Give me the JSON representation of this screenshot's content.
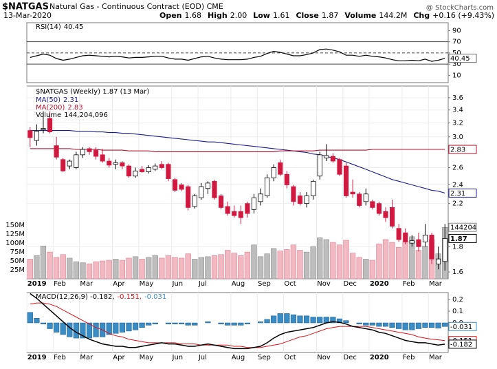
{
  "header": {
    "symbol": "$NATGAS",
    "description": "Natural Gas - Continuous Contract (EOD) CME",
    "date": "13-Mar-2020",
    "watermark": "@ StockCharts.com",
    "quote": [
      {
        "label": "Open",
        "value": "1.68"
      },
      {
        "label": "High",
        "value": "2.00"
      },
      {
        "label": "Low",
        "value": "1.61"
      },
      {
        "label": "Close",
        "value": "1.87"
      },
      {
        "label": "Volume",
        "value": "144.2M"
      },
      {
        "label": "Chg",
        "value": "+0.16 (+9.43%)"
      }
    ]
  },
  "chart_data": [
    {
      "type": "line",
      "ylim": [
        -3,
        104
      ],
      "yticks": [
        90,
        70,
        50,
        30,
        10
      ],
      "levels": [
        70,
        50,
        30
      ],
      "series": [
        {
          "name": "RSI(14)",
          "color": "#000000",
          "values": [
            42,
            45,
            48,
            46,
            40,
            37,
            39,
            42,
            45,
            46,
            45,
            44,
            43,
            44,
            43,
            41,
            42,
            42,
            43,
            44,
            44,
            41,
            39,
            39,
            37,
            40,
            43,
            44,
            41,
            39,
            38,
            38,
            38,
            39,
            42,
            44,
            49,
            53,
            51,
            48,
            45,
            45,
            47,
            50,
            56,
            57,
            55,
            52,
            46,
            46,
            44,
            46,
            44,
            43,
            41,
            38,
            36,
            36,
            37,
            36,
            39,
            35,
            37,
            40.45
          ]
        }
      ]
    },
    {
      "type": "candlestick",
      "title": "$NATGAS (Weekly) 1.87 (13 Mar)",
      "log_scale": true,
      "grid": true,
      "ylim": [
        1.55,
        3.8
      ],
      "yticks": [
        3.6,
        3.4,
        3.2,
        {
          "value": 3,
          "label": "3.0"
        },
        2.6,
        2.4,
        2.2,
        1.8,
        1.6
      ],
      "categories": [
        "2019",
        null,
        null,
        null,
        "Feb",
        null,
        null,
        null,
        "Mar",
        null,
        null,
        null,
        null,
        "Apr",
        null,
        null,
        null,
        "May",
        null,
        null,
        null,
        null,
        "Jun",
        null,
        null,
        null,
        "Jul",
        null,
        null,
        null,
        null,
        "Aug",
        null,
        null,
        null,
        "Sep",
        null,
        null,
        null,
        "Oct",
        null,
        null,
        null,
        null,
        "Nov",
        null,
        null,
        null,
        "Dec",
        null,
        null,
        null,
        "2020",
        null,
        null,
        null,
        null,
        "Feb",
        null,
        null,
        null,
        "Mar",
        null,
        null
      ],
      "open": [
        3.09,
        2.95,
        3.1,
        3.27,
        2.88,
        2.7,
        2.62,
        2.6,
        2.76,
        2.84,
        2.82,
        2.76,
        2.68,
        2.64,
        2.66,
        2.62,
        2.5,
        2.58,
        2.55,
        2.58,
        2.64,
        2.64,
        2.46,
        2.4,
        2.38,
        2.17,
        2.26,
        2.36,
        2.44,
        2.28,
        2.17,
        2.12,
        2.12,
        2.2,
        2.14,
        2.22,
        2.28,
        2.48,
        2.66,
        2.52,
        2.38,
        2.28,
        2.2,
        2.28,
        2.5,
        2.72,
        2.74,
        2.7,
        2.62,
        2.32,
        2.3,
        2.22,
        2.22,
        2.2,
        2.12,
        2.16,
        1.96,
        1.92,
        1.83,
        1.86,
        1.84,
        1.9,
        1.66,
        1.68
      ],
      "high": [
        3.14,
        3.18,
        3.38,
        3.38,
        3.0,
        2.72,
        2.7,
        2.8,
        2.86,
        2.86,
        2.86,
        2.84,
        2.72,
        2.7,
        2.68,
        2.64,
        2.6,
        2.62,
        2.63,
        2.65,
        2.68,
        2.66,
        2.48,
        2.42,
        2.4,
        2.3,
        2.42,
        2.44,
        2.46,
        2.3,
        2.22,
        2.18,
        2.18,
        2.22,
        2.3,
        2.36,
        2.52,
        2.64,
        2.7,
        2.56,
        2.4,
        2.32,
        2.32,
        2.46,
        2.8,
        2.9,
        2.78,
        2.72,
        2.66,
        2.46,
        2.32,
        2.36,
        2.24,
        2.22,
        2.16,
        2.24,
        2.0,
        1.96,
        1.9,
        1.92,
        2.0,
        1.92,
        1.8,
        2.0
      ],
      "low": [
        2.86,
        2.88,
        3.05,
        3.05,
        2.7,
        2.55,
        2.58,
        2.58,
        2.72,
        2.76,
        2.7,
        2.66,
        2.6,
        2.58,
        2.58,
        2.48,
        2.48,
        2.54,
        2.53,
        2.56,
        2.58,
        2.44,
        2.32,
        2.33,
        2.13,
        2.15,
        2.24,
        2.3,
        2.24,
        2.14,
        2.08,
        2.06,
        2.0,
        2.06,
        2.1,
        2.18,
        2.26,
        2.44,
        2.5,
        2.36,
        2.18,
        2.18,
        2.16,
        2.24,
        2.46,
        2.68,
        2.66,
        2.5,
        2.26,
        2.26,
        2.16,
        2.18,
        2.14,
        2.08,
        2.02,
        1.96,
        1.84,
        1.82,
        1.8,
        1.76,
        1.8,
        1.66,
        1.62,
        1.61
      ],
      "close": [
        2.99,
        3.08,
        3.12,
        3.07,
        2.73,
        2.56,
        2.68,
        2.76,
        2.83,
        2.8,
        2.74,
        2.68,
        2.63,
        2.66,
        2.62,
        2.5,
        2.56,
        2.55,
        2.6,
        2.62,
        2.6,
        2.47,
        2.34,
        2.35,
        2.16,
        2.28,
        2.38,
        2.42,
        2.26,
        2.16,
        2.1,
        2.08,
        2.06,
        2.1,
        2.26,
        2.3,
        2.48,
        2.6,
        2.52,
        2.4,
        2.22,
        2.2,
        2.28,
        2.44,
        2.76,
        2.75,
        2.68,
        2.52,
        2.28,
        2.3,
        2.18,
        2.3,
        2.16,
        2.1,
        2.06,
        1.98,
        1.86,
        1.84,
        1.85,
        1.8,
        1.9,
        1.7,
        1.7,
        1.87
      ],
      "series": [
        {
          "name": "MA(50)",
          "color": "#1c1c8e",
          "values": [
            3.09,
            3.09,
            3.09,
            3.09,
            3.09,
            3.09,
            3.09,
            3.08,
            3.08,
            3.08,
            3.07,
            3.07,
            3.06,
            3.06,
            3.05,
            3.05,
            3.04,
            3.03,
            3.02,
            3.01,
            3.0,
            2.99,
            2.98,
            2.97,
            2.96,
            2.95,
            2.94,
            2.93,
            2.93,
            2.92,
            2.91,
            2.9,
            2.89,
            2.88,
            2.87,
            2.86,
            2.85,
            2.84,
            2.83,
            2.82,
            2.81,
            2.8,
            2.79,
            2.77,
            2.76,
            2.74,
            2.72,
            2.7,
            2.67,
            2.64,
            2.61,
            2.58,
            2.55,
            2.52,
            2.49,
            2.46,
            2.44,
            2.42,
            2.4,
            2.38,
            2.36,
            2.34,
            2.33,
            2.31
          ]
        },
        {
          "name": "MA(200)",
          "color": "#b0102c",
          "values": [
            2.84,
            2.84,
            2.84,
            2.84,
            2.84,
            2.84,
            2.84,
            2.83,
            2.83,
            2.83,
            2.83,
            2.82,
            2.82,
            2.82,
            2.82,
            2.81,
            2.81,
            2.81,
            2.81,
            2.8,
            2.8,
            2.8,
            2.8,
            2.8,
            2.8,
            2.8,
            2.8,
            2.8,
            2.8,
            2.8,
            2.8,
            2.8,
            2.8,
            2.8,
            2.8,
            2.8,
            2.8,
            2.8,
            2.81,
            2.81,
            2.81,
            2.81,
            2.81,
            2.81,
            2.82,
            2.82,
            2.82,
            2.82,
            2.82,
            2.82,
            2.82,
            2.82,
            2.83,
            2.83,
            2.83,
            2.83,
            2.83,
            2.83,
            2.83,
            2.83,
            2.83,
            2.83,
            2.83,
            2.83
          ]
        }
      ],
      "volume": {
        "name": "Volume",
        "legend_value": "144,204,096",
        "axis_tag": "144204",
        "ylim": [
          0,
          540000000
        ],
        "yticks": [
          {
            "value": 150000000,
            "label": "150M"
          },
          {
            "value": 125000000,
            "label": "125M"
          },
          {
            "value": 100000000,
            "label": "100M"
          },
          {
            "value": 75000000,
            "label": "75M"
          },
          {
            "value": 50000000,
            "label": "50M"
          },
          {
            "value": 25000000,
            "label": "25M"
          }
        ],
        "values": [
          55000000,
          65000000,
          92000000,
          75000000,
          60000000,
          68000000,
          58000000,
          48000000,
          45000000,
          42000000,
          48000000,
          50000000,
          52000000,
          55000000,
          52000000,
          58000000,
          62000000,
          55000000,
          60000000,
          65000000,
          58000000,
          65000000,
          60000000,
          58000000,
          70000000,
          55000000,
          60000000,
          62000000,
          65000000,
          68000000,
          80000000,
          72000000,
          65000000,
          75000000,
          95000000,
          62000000,
          70000000,
          85000000,
          78000000,
          82000000,
          95000000,
          80000000,
          75000000,
          90000000,
          115000000,
          110000000,
          102000000,
          95000000,
          108000000,
          72000000,
          60000000,
          55000000,
          52000000,
          98000000,
          110000000,
          102000000,
          88000000,
          105000000,
          118000000,
          80000000,
          92000000,
          110000000,
          70000000,
          144204096
        ]
      }
    },
    {
      "type": "macd",
      "legend": [
        "MACD(12,26,9) -0.182,",
        "-0.151,",
        "-0.031"
      ],
      "ylim": [
        -0.253,
        0.259
      ],
      "yticks": [
        0.2,
        0.1,
        {
          "value": 0,
          "label": "0.0"
        }
      ],
      "categories": [
        "2019",
        null,
        null,
        null,
        "Feb",
        null,
        null,
        null,
        "Mar",
        null,
        null,
        null,
        null,
        "Apr",
        null,
        null,
        null,
        "May",
        null,
        null,
        null,
        null,
        "Jun",
        null,
        null,
        null,
        "Jul",
        null,
        null,
        null,
        null,
        "Aug",
        null,
        null,
        null,
        "Sep",
        null,
        null,
        null,
        "Oct",
        null,
        null,
        null,
        null,
        "Nov",
        null,
        null,
        null,
        "Dec",
        null,
        null,
        null,
        "2020",
        null,
        null,
        null,
        null,
        "Feb",
        null,
        null,
        null,
        "Mar",
        null,
        null
      ],
      "series": [
        {
          "color": "#000000",
          "values": [
            0.25,
            0.21,
            0.16,
            0.11,
            0.06,
            0.01,
            -0.04,
            -0.08,
            -0.11,
            -0.14,
            -0.16,
            -0.18,
            -0.19,
            -0.2,
            -0.2,
            -0.21,
            -0.21,
            -0.2,
            -0.19,
            -0.18,
            -0.17,
            -0.18,
            -0.18,
            -0.19,
            -0.2,
            -0.2,
            -0.19,
            -0.18,
            -0.19,
            -0.2,
            -0.21,
            -0.22,
            -0.22,
            -0.22,
            -0.21,
            -0.2,
            -0.17,
            -0.13,
            -0.1,
            -0.08,
            -0.07,
            -0.06,
            -0.05,
            -0.04,
            -0.02,
            0,
            0.01,
            0.005,
            -0.01,
            -0.03,
            -0.04,
            -0.05,
            -0.06,
            -0.08,
            -0.09,
            -0.11,
            -0.13,
            -0.15,
            -0.16,
            -0.17,
            -0.17,
            -0.18,
            -0.19,
            -0.182
          ]
        },
        {
          "color": "#e0101a",
          "values": [
            0.16,
            0.17,
            0.17,
            0.16,
            0.14,
            0.11,
            0.08,
            0.05,
            0.02,
            -0.01,
            -0.04,
            -0.06,
            -0.09,
            -0.11,
            -0.12,
            -0.14,
            -0.15,
            -0.16,
            -0.17,
            -0.17,
            -0.17,
            -0.17,
            -0.17,
            -0.18,
            -0.18,
            -0.18,
            -0.19,
            -0.19,
            -0.19,
            -0.19,
            -0.19,
            -0.2,
            -0.2,
            -0.21,
            -0.21,
            -0.21,
            -0.2,
            -0.19,
            -0.18,
            -0.16,
            -0.14,
            -0.12,
            -0.11,
            -0.09,
            -0.07,
            -0.05,
            -0.04,
            -0.03,
            -0.03,
            -0.03,
            -0.03,
            -0.03,
            -0.04,
            -0.05,
            -0.06,
            -0.07,
            -0.08,
            -0.09,
            -0.1,
            -0.12,
            -0.13,
            -0.14,
            -0.145,
            -0.151
          ]
        },
        {
          "color": "#3a8cc4",
          "values": [
            0.09,
            0.04,
            -0.01,
            -0.05,
            -0.08,
            -0.1,
            -0.12,
            -0.13,
            -0.13,
            -0.13,
            -0.12,
            -0.12,
            -0.1,
            -0.09,
            -0.08,
            -0.07,
            -0.06,
            -0.04,
            -0.02,
            -0.01,
            0,
            -0.01,
            -0.01,
            -0.01,
            -0.02,
            -0.02,
            0,
            0.01,
            0,
            -0.01,
            -0.02,
            -0.02,
            -0.02,
            -0.01,
            0,
            0.01,
            0.03,
            0.06,
            0.08,
            0.08,
            0.07,
            0.06,
            0.06,
            0.05,
            0.05,
            0.05,
            0.05,
            0.035,
            0.02,
            0,
            -0.01,
            -0.02,
            -0.02,
            -0.03,
            -0.03,
            -0.04,
            -0.05,
            -0.06,
            -0.06,
            -0.05,
            -0.04,
            -0.04,
            -0.045,
            -0.031
          ]
        }
      ]
    }
  ]
}
